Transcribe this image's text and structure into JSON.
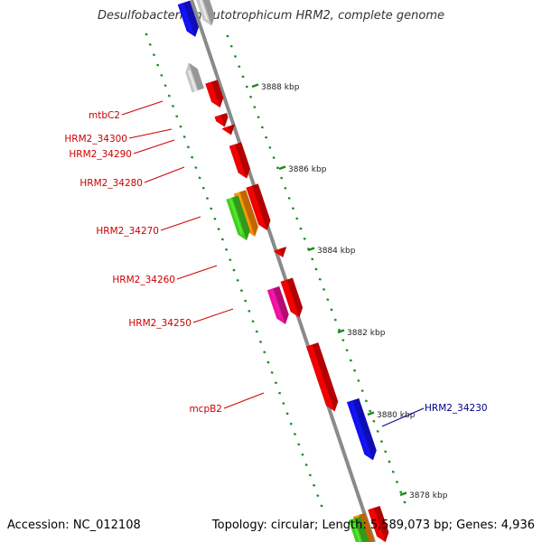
{
  "title": "Desulfobacterium autotrophicum HRM2, complete genome",
  "footer": {
    "accession": "Accession: NC_012108",
    "summary": "Topology: circular; Length: 5,589,073 bp; Genes: 4,936"
  },
  "colors": {
    "backbone": "#8a8a8a",
    "tick": "#1a8a1a",
    "label_red": "#cc0000",
    "label_blue": "#00008b",
    "red": "#ee0000",
    "blue": "#1111ee",
    "gray": "#c8c8c8",
    "green": "#44cc22",
    "orange": "#ff8800",
    "pink": "#ee1199"
  },
  "ruler_labels": [
    {
      "text": "3888 kbp",
      "kbp": 3888
    },
    {
      "text": "3886 kbp",
      "kbp": 3886
    },
    {
      "text": "3884 kbp",
      "kbp": 3884
    },
    {
      "text": "3882 kbp",
      "kbp": 3882
    },
    {
      "text": "3880 kbp",
      "kbp": 3880
    },
    {
      "text": "3878 kbp",
      "kbp": 3878
    }
  ],
  "gene_labels": [
    {
      "text": "mtbC2",
      "color": "label_red"
    },
    {
      "text": "HRM2_34300",
      "color": "label_red"
    },
    {
      "text": "HRM2_34290",
      "color": "label_red"
    },
    {
      "text": "HRM2_34280",
      "color": "label_red"
    },
    {
      "text": "HRM2_34270",
      "color": "label_red"
    },
    {
      "text": "HRM2_34260",
      "color": "label_red"
    },
    {
      "text": "HRM2_34250",
      "color": "label_red"
    },
    {
      "text": "mcpB2",
      "color": "label_red"
    },
    {
      "text": "HRM2_34230",
      "color": "label_blue"
    }
  ]
}
